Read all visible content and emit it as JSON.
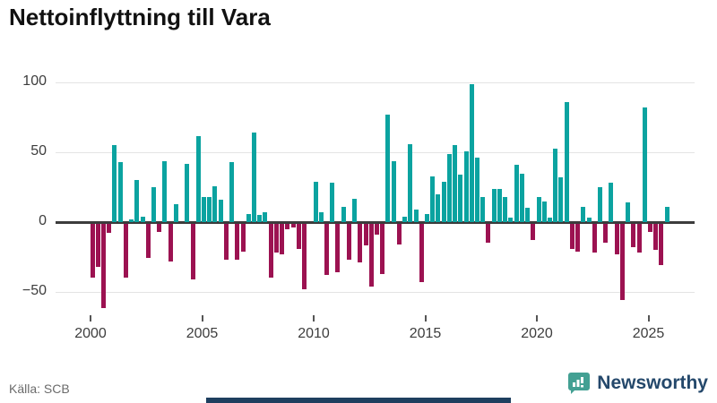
{
  "title": "Nettoinflyttning till Vara",
  "source": "Källa: SCB",
  "brand": {
    "name": "Newsworthy"
  },
  "colors": {
    "positive": "#0ba3a0",
    "negative": "#9c1251",
    "grid": "#e4e4e4",
    "zero_axis": "#3c3c3c",
    "title_text": "#111111",
    "tick_text": "#3d3d3d",
    "source_text": "#6b6b6b",
    "brand_navy": "#24486b",
    "brand_teal": "#43a093"
  },
  "chart_data": {
    "type": "bar",
    "title": "Nettoinflyttning till Vara",
    "period": "quarterly",
    "start_year": 2000,
    "quarters_per_year": 4,
    "values": [
      -39,
      -31,
      -61,
      -7,
      55,
      43,
      -39,
      2,
      30,
      4,
      -25,
      25,
      -6,
      44,
      -27,
      13,
      0,
      42,
      -40,
      62,
      18,
      18,
      26,
      16,
      -26,
      43,
      -26,
      -20,
      6,
      64,
      5,
      7,
      -39,
      -21,
      -22,
      -4,
      -3,
      -18,
      -47,
      0,
      29,
      7,
      -37,
      28,
      -35,
      11,
      -26,
      17,
      -28,
      -16,
      -45,
      -8,
      -36,
      77,
      44,
      -15,
      4,
      56,
      9,
      -42,
      6,
      33,
      20,
      29,
      49,
      55,
      34,
      51,
      99,
      46,
      18,
      -14,
      24,
      24,
      18,
      3,
      41,
      35,
      10,
      -12,
      18,
      15,
      3,
      53,
      32,
      86,
      -18,
      -20,
      11,
      3,
      -21,
      25,
      -14,
      28,
      -22,
      -55,
      14,
      -17,
      -21,
      82,
      -6,
      -19,
      -30,
      11
    ],
    "yticks": [
      {
        "label": "100",
        "value": 100
      },
      {
        "label": "50",
        "value": 50
      },
      {
        "label": "0",
        "value": 0
      },
      {
        "label": "−50",
        "value": -50
      }
    ],
    "xticks": [
      {
        "label": "2000",
        "year": 2000
      },
      {
        "label": "2005",
        "year": 2005
      },
      {
        "label": "2010",
        "year": 2010
      },
      {
        "label": "2015",
        "year": 2015
      },
      {
        "label": "2020",
        "year": 2020
      },
      {
        "label": "2025",
        "year": 2025
      }
    ],
    "ylim": [
      -65,
      110
    ],
    "grid": true,
    "legend": false
  }
}
